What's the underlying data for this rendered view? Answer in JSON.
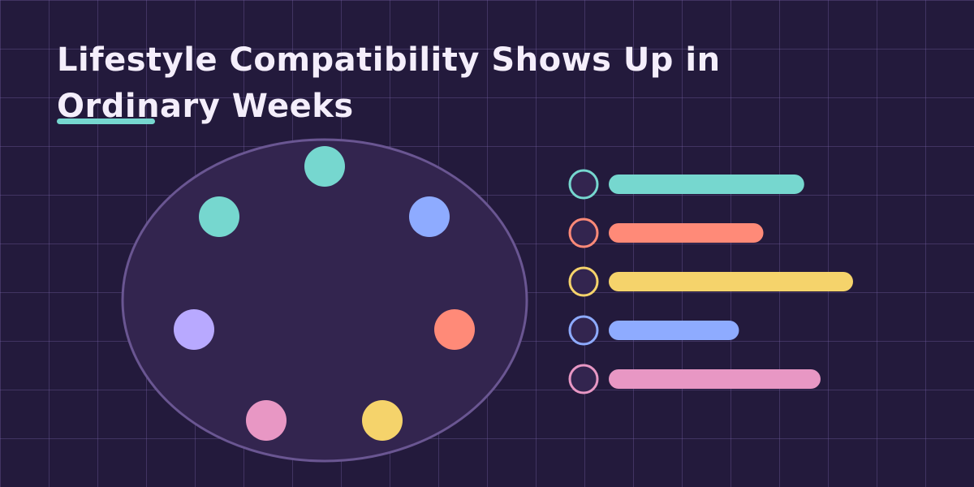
{
  "title": "Lifestyle Compatibility Shows Up in Ordinary Weeks",
  "colors": {
    "background": "#231A3C",
    "ring_fill": "#33254F",
    "ring_stroke": "#6A5692",
    "accent": "#76D7CF"
  },
  "ring_nodes": [
    {
      "color": "#76D7CF"
    },
    {
      "color": "#8EABFF"
    },
    {
      "color": "#FF8A78"
    },
    {
      "color": "#F5D36B"
    },
    {
      "color": "#E897C4"
    },
    {
      "color": "#B8A9FF"
    },
    {
      "color": "#76D7CF"
    }
  ],
  "bars": [
    {
      "color": "#76D7CF",
      "level": 0.8
    },
    {
      "color": "#FF8A78",
      "level": 0.633
    },
    {
      "color": "#F5D36B",
      "level": 1.0
    },
    {
      "color": "#8EABFF",
      "level": 0.533
    },
    {
      "color": "#E897C4",
      "level": 0.867
    }
  ]
}
